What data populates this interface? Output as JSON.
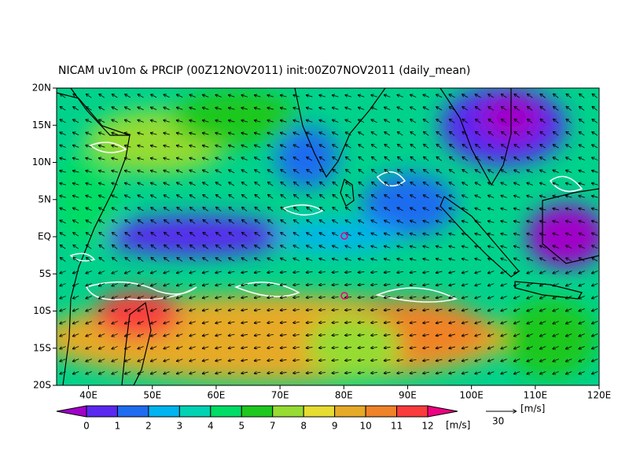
{
  "title": "NICAM uv10m & PRCIP (00Z12NOV2011) init:00Z07NOV2011 (daily_mean)",
  "map": {
    "xlim": [
      35,
      120
    ],
    "ylim": [
      -20,
      20
    ],
    "lat_ticks": [
      {
        "value": 20,
        "label": "20N"
      },
      {
        "value": 15,
        "label": "15N"
      },
      {
        "value": 10,
        "label": "10N"
      },
      {
        "value": 5,
        "label": "5N"
      },
      {
        "value": 0,
        "label": "EQ"
      },
      {
        "value": -5,
        "label": "5S"
      },
      {
        "value": -10,
        "label": "10S"
      },
      {
        "value": -15,
        "label": "15S"
      },
      {
        "value": -20,
        "label": "20S"
      }
    ],
    "lon_ticks": [
      {
        "value": 40,
        "label": "40E"
      },
      {
        "value": 50,
        "label": "50E"
      },
      {
        "value": 60,
        "label": "60E"
      },
      {
        "value": 70,
        "label": "70E"
      },
      {
        "value": 80,
        "label": "80E"
      },
      {
        "value": 90,
        "label": "90E"
      },
      {
        "value": 100,
        "label": "100E"
      },
      {
        "value": 110,
        "label": "110E"
      },
      {
        "value": 120,
        "label": "120E"
      }
    ]
  },
  "colorbar": {
    "levels": [
      0,
      1,
      2,
      3,
      4,
      5,
      7,
      8,
      9,
      10,
      11,
      12
    ],
    "colors": [
      "#a000c8",
      "#5a28f0",
      "#1e6cf0",
      "#00b4f0",
      "#00d2b4",
      "#00dc64",
      "#1ec81e",
      "#96dc32",
      "#e6dc32",
      "#e6aa28",
      "#f08228",
      "#fa3c3c",
      "#f00082"
    ],
    "unit": "[m/s]"
  },
  "reference_vector": {
    "value": 30,
    "unit": "[m/s]"
  }
}
